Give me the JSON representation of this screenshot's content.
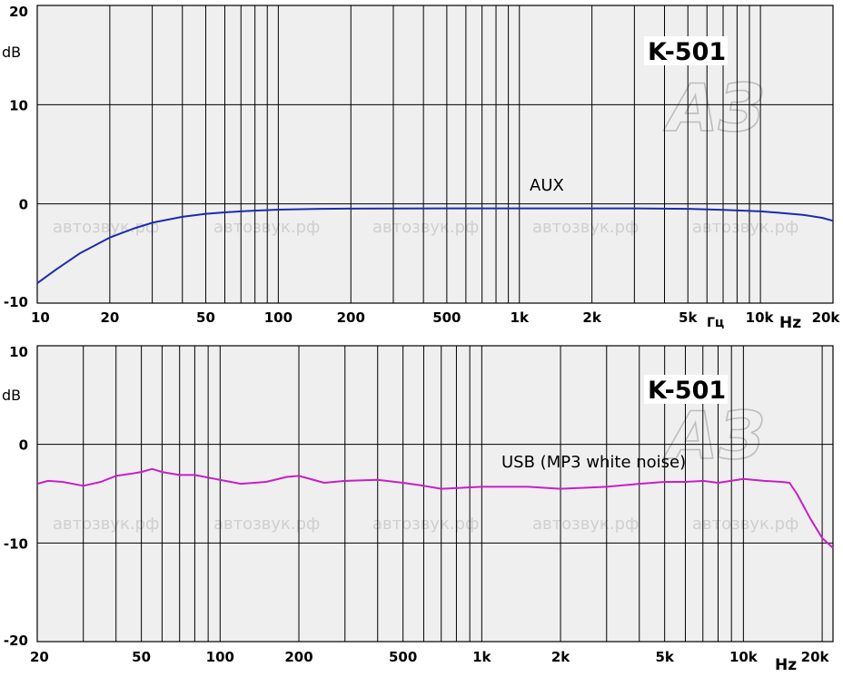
{
  "watermark_text": "автозвук.рф",
  "logo_text": "АЗ",
  "chart_data": [
    {
      "type": "line",
      "model": "K-501",
      "curve_label": "AUX",
      "ylabel": "dB",
      "x_unit_ru": "Гц",
      "x_unit": "Hz",
      "x_scale": "log",
      "xlim": [
        10,
        20000
      ],
      "ylim": [
        -10,
        20
      ],
      "y_ticks": [
        {
          "value": 20,
          "label": "20"
        },
        {
          "value": 10,
          "label": "10"
        },
        {
          "value": 0,
          "label": "0"
        },
        {
          "value": -10,
          "label": "-10"
        }
      ],
      "x_ticks": [
        {
          "value": 10,
          "label": "10"
        },
        {
          "value": 20,
          "label": "20"
        },
        {
          "value": 50,
          "label": "50"
        },
        {
          "value": 100,
          "label": "100"
        },
        {
          "value": 200,
          "label": "200"
        },
        {
          "value": 500,
          "label": "500"
        },
        {
          "value": 1000,
          "label": "1k"
        },
        {
          "value": 2000,
          "label": "2k"
        },
        {
          "value": 5000,
          "label": "5k"
        },
        {
          "value": 10000,
          "label": "10k"
        },
        {
          "value": 20000,
          "label": "20k"
        }
      ],
      "grid": true,
      "series": [
        {
          "color": "#1a2bb0",
          "x": [
            10,
            12,
            15,
            20,
            25,
            30,
            40,
            50,
            60,
            70,
            80,
            100,
            150,
            200,
            300,
            500,
            1000,
            2000,
            3000,
            5000,
            7000,
            10000,
            12000,
            15000,
            18000,
            20000
          ],
          "y": [
            -8,
            -6.6,
            -5,
            -3.4,
            -2.5,
            -1.9,
            -1.3,
            -1.0,
            -0.85,
            -0.75,
            -0.68,
            -0.58,
            -0.5,
            -0.48,
            -0.46,
            -0.45,
            -0.45,
            -0.45,
            -0.45,
            -0.5,
            -0.6,
            -0.75,
            -0.9,
            -1.1,
            -1.4,
            -1.7
          ]
        }
      ]
    },
    {
      "type": "line",
      "model": "K-501",
      "curve_label": "USB (MP3 white noise)",
      "ylabel": "dB",
      "x_unit": "Hz",
      "x_scale": "log",
      "xlim": [
        20,
        22000
      ],
      "ylim": [
        -20,
        10
      ],
      "y_ticks": [
        {
          "value": 10,
          "label": "10"
        },
        {
          "value": 0,
          "label": "0"
        },
        {
          "value": -10,
          "label": "-10"
        },
        {
          "value": -20,
          "label": "-20"
        }
      ],
      "x_ticks": [
        {
          "value": 20,
          "label": "20"
        },
        {
          "value": 50,
          "label": "50"
        },
        {
          "value": 100,
          "label": "100"
        },
        {
          "value": 200,
          "label": "200"
        },
        {
          "value": 500,
          "label": "500"
        },
        {
          "value": 1000,
          "label": "1k"
        },
        {
          "value": 2000,
          "label": "2k"
        },
        {
          "value": 5000,
          "label": "5k"
        },
        {
          "value": 10000,
          "label": "10k"
        },
        {
          "value": 20000,
          "label": "20k"
        }
      ],
      "grid": true,
      "series": [
        {
          "color": "#c81ec8",
          "x": [
            20,
            22,
            25,
            30,
            35,
            40,
            45,
            50,
            55,
            60,
            70,
            80,
            100,
            120,
            150,
            180,
            200,
            250,
            300,
            400,
            500,
            600,
            700,
            1000,
            1500,
            2000,
            3000,
            4000,
            5000,
            6000,
            7000,
            8000,
            10000,
            12000,
            14000,
            15000,
            16000,
            18000,
            20000,
            22000
          ],
          "y": [
            -4.0,
            -3.7,
            -3.8,
            -4.2,
            -3.8,
            -3.2,
            -3.0,
            -2.8,
            -2.5,
            -2.8,
            -3.1,
            -3.1,
            -3.6,
            -4.0,
            -3.8,
            -3.3,
            -3.2,
            -3.9,
            -3.7,
            -3.6,
            -3.9,
            -4.2,
            -4.5,
            -4.3,
            -4.3,
            -4.5,
            -4.3,
            -4.0,
            -3.8,
            -3.8,
            -3.7,
            -3.9,
            -3.5,
            -3.7,
            -3.8,
            -3.9,
            -5.0,
            -7.5,
            -9.5,
            -10.5
          ]
        }
      ]
    }
  ]
}
